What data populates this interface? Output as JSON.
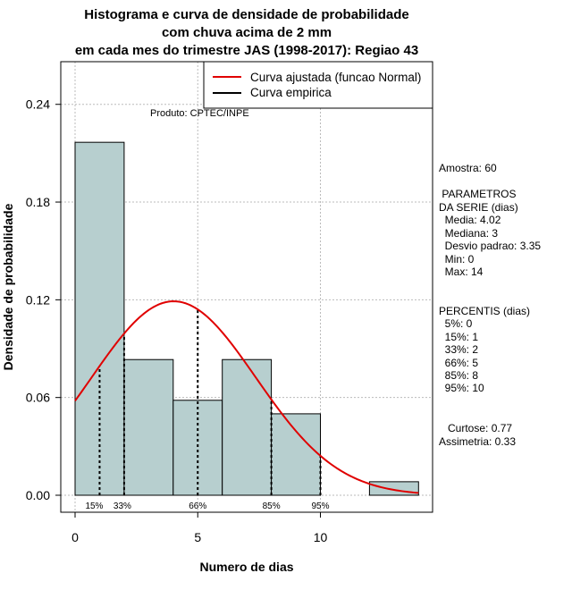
{
  "chart_data": {
    "type": "histogram",
    "title": [
      "Histograma e curva de densidade de probabilidade",
      "com chuva acima de 2 mm",
      "em cada mes do trimestre JAS (1998-2017): Regiao 43"
    ],
    "xlabel": "Numero de dias",
    "ylabel": "Densidade de probabilidade",
    "xlim": [
      -0.5,
      14.5
    ],
    "ylim": [
      0,
      0.26
    ],
    "x_ticks": [
      0,
      5,
      10
    ],
    "y_ticks": [
      0.0,
      0.06,
      0.12,
      0.18,
      0.24
    ],
    "y_tick_labels": [
      "0.00",
      "0.06",
      "0.12",
      "0.18",
      "0.24"
    ],
    "grid": true,
    "bins": [
      {
        "x0": 0,
        "x1": 2,
        "density": 0.2167
      },
      {
        "x0": 2,
        "x1": 4,
        "density": 0.0833
      },
      {
        "x0": 4,
        "x1": 6,
        "density": 0.0583
      },
      {
        "x0": 6,
        "x1": 8,
        "density": 0.0833
      },
      {
        "x0": 8,
        "x1": 10,
        "density": 0.05
      },
      {
        "x0": 10,
        "x1": 12,
        "density": 0.0
      },
      {
        "x0": 12,
        "x1": 14,
        "density": 0.0083
      }
    ],
    "bar_color": "#b7cfcf",
    "normal_fit": {
      "mean": 4.02,
      "sd": 3.35,
      "color": "#e00000",
      "x_range": [
        0,
        14
      ]
    },
    "percentile_markers": [
      {
        "label": "15%",
        "x": 1
      },
      {
        "label": "33%",
        "x": 2
      },
      {
        "label": "66%",
        "x": 5
      },
      {
        "label": "85%",
        "x": 8
      },
      {
        "label": "95%",
        "x": 10
      }
    ],
    "legend": {
      "position": "top-right",
      "entries": [
        {
          "label": "Curva ajustada (funcao Normal)",
          "color": "#e00000"
        },
        {
          "label": "Curva empirica",
          "color": "#000000"
        }
      ]
    },
    "annotation": "Produto: CPTEC/INPE"
  },
  "sidebar": {
    "lines": [
      "Amostra: 60",
      " PARAMETROS",
      "DA SERIE (dias)",
      "  Media: 4.02",
      "  Mediana: 3",
      "  Desvio padrao: 3.35",
      "  Min: 0",
      "  Max: 14",
      "PERCENTIS (dias)",
      "  5%: 0",
      "  15%: 1",
      "  33%: 2",
      "  66%: 5",
      "  85%: 8",
      "  95%: 10",
      "   Curtose: 0.77",
      "Assimetria: 0.33"
    ]
  }
}
